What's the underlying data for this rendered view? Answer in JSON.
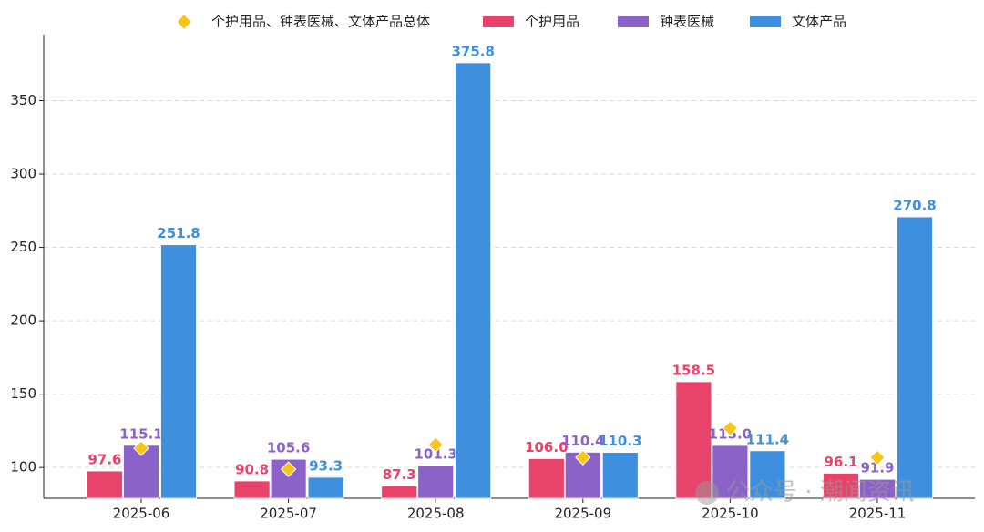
{
  "chart_data": {
    "type": "bar",
    "categories": [
      "2025-06",
      "2025-07",
      "2025-08",
      "2025-09",
      "2025-10",
      "2025-11"
    ],
    "series": [
      {
        "name": "个护用品",
        "color": "#e8436a",
        "values": [
          97.6,
          90.8,
          87.3,
          106.0,
          158.5,
          96.1
        ],
        "value_labels": [
          "97.6",
          "90.8",
          "87.3",
          "106.0",
          "158.5",
          "96.1"
        ]
      },
      {
        "name": "钟表医械",
        "color": "#8b62c8",
        "values": [
          115.1,
          105.6,
          101.3,
          110.4,
          115.0,
          91.9
        ],
        "value_labels": [
          "115.1",
          "105.6",
          "101.3",
          "110.4",
          "115.0",
          "91.9"
        ]
      },
      {
        "name": "文体产品",
        "color": "#3f8fdf",
        "values": [
          251.8,
          93.3,
          375.8,
          110.3,
          111.4,
          270.8
        ],
        "value_labels": [
          "251.8",
          "93.3",
          "375.8",
          "110.3",
          "111.4",
          "270.8"
        ]
      }
    ],
    "total": {
      "name": "个护用品、钟表医械、文体产品总体",
      "color": "#f5c518",
      "values": [
        113.1,
        98.8,
        115.5,
        106.8,
        126.7,
        106.8
      ]
    },
    "ylim": [
      79,
      395
    ],
    "yticks": [
      100,
      150,
      200,
      250,
      300,
      350
    ],
    "grid": true,
    "watermark": "公众号 · 潮闻资讯"
  }
}
